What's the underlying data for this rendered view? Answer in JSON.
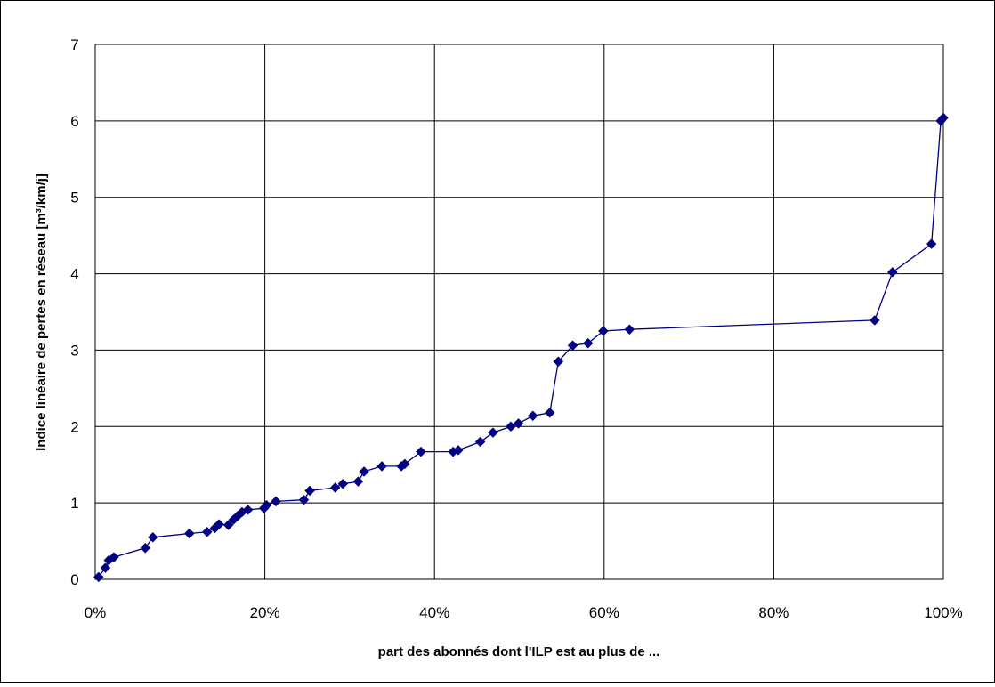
{
  "chart_data": {
    "type": "line",
    "title": "",
    "xlabel": "part des abonnés dont l'ILP est au plus de ...",
    "ylabel": "Indice linéaire de pertes en réseau   [m³/km/j]",
    "xlim": [
      0,
      1
    ],
    "ylim": [
      0,
      7
    ],
    "x_ticks": [
      "0%",
      "20%",
      "40%",
      "60%",
      "80%",
      "100%"
    ],
    "y_ticks": [
      "0",
      "1",
      "2",
      "3",
      "4",
      "5",
      "6",
      "7"
    ],
    "grid": true,
    "legend": "none",
    "series": [
      {
        "color": "#000080",
        "marker": "diamond",
        "points": [
          [
            0.004,
            0.03
          ],
          [
            0.012,
            0.15
          ],
          [
            0.016,
            0.25
          ],
          [
            0.022,
            0.29
          ],
          [
            0.059,
            0.41
          ],
          [
            0.068,
            0.55
          ],
          [
            0.111,
            0.6
          ],
          [
            0.132,
            0.62
          ],
          [
            0.141,
            0.67
          ],
          [
            0.146,
            0.72
          ],
          [
            0.157,
            0.71
          ],
          [
            0.163,
            0.78
          ],
          [
            0.168,
            0.83
          ],
          [
            0.173,
            0.88
          ],
          [
            0.18,
            0.91
          ],
          [
            0.199,
            0.93
          ],
          [
            0.202,
            0.97
          ],
          [
            0.213,
            1.02
          ],
          [
            0.246,
            1.04
          ],
          [
            0.253,
            1.16
          ],
          [
            0.283,
            1.2
          ],
          [
            0.292,
            1.25
          ],
          [
            0.31,
            1.28
          ],
          [
            0.317,
            1.41
          ],
          [
            0.338,
            1.48
          ],
          [
            0.361,
            1.48
          ],
          [
            0.365,
            1.51
          ],
          [
            0.384,
            1.67
          ],
          [
            0.422,
            1.67
          ],
          [
            0.428,
            1.69
          ],
          [
            0.454,
            1.8
          ],
          [
            0.469,
            1.92
          ],
          [
            0.49,
            2.0
          ],
          [
            0.499,
            2.04
          ],
          [
            0.516,
            2.14
          ],
          [
            0.536,
            2.18
          ],
          [
            0.546,
            2.85
          ],
          [
            0.563,
            3.06
          ],
          [
            0.581,
            3.09
          ],
          [
            0.599,
            3.25
          ],
          [
            0.63,
            3.27
          ],
          [
            0.919,
            3.39
          ],
          [
            0.94,
            4.02
          ],
          [
            0.986,
            4.39
          ],
          [
            0.997,
            6.0
          ],
          [
            1.0,
            6.04
          ]
        ]
      }
    ]
  },
  "colors": {
    "series_line": "#000080",
    "grid": "#000000",
    "plot_background": "#ffffff"
  }
}
